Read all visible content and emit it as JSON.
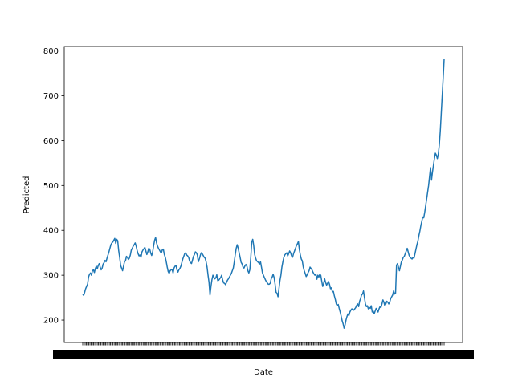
{
  "chart_data": {
    "type": "line",
    "title": "",
    "xlabel": "Date",
    "ylabel": "Predicted",
    "ylim": [
      150,
      810
    ],
    "yticks": [
      200,
      300,
      400,
      500,
      600,
      700,
      800
    ],
    "grid": false,
    "legend": "none",
    "colors": {
      "line": "#1f77b4",
      "axes": "#000000",
      "background": "#ffffff"
    },
    "x_ticks_unreadable": true,
    "series": [
      {
        "values": [
          258,
          255,
          262,
          270,
          275,
          280,
          296,
          302,
          305,
          300,
          310,
          312,
          306,
          315,
          320,
          314,
          322,
          326,
          318,
          312,
          316,
          325,
          328,
          333,
          330,
          338,
          345,
          352,
          360,
          368,
          372,
          374,
          378,
          382,
          371,
          380,
          377,
          355,
          340,
          322,
          316,
          310,
          320,
          330,
          332,
          342,
          340,
          335,
          338,
          345,
          356,
          360,
          365,
          368,
          372,
          365,
          355,
          348,
          343,
          345,
          340,
          352,
          356,
          359,
          362,
          354,
          346,
          352,
          360,
          358,
          349,
          344,
          352,
          366,
          378,
          384,
          372,
          365,
          360,
          356,
          352,
          350,
          357,
          358,
          346,
          340,
          330,
          318,
          308,
          304,
          310,
          312,
          313,
          305,
          316,
          320,
          322,
          312,
          307,
          312,
          315,
          320,
          328,
          336,
          342,
          348,
          350,
          345,
          343,
          340,
          332,
          328,
          326,
          334,
          342,
          346,
          352,
          350,
          345,
          330,
          336,
          344,
          350,
          348,
          344,
          340,
          338,
          330,
          318,
          300,
          284,
          256,
          275,
          290,
          300,
          296,
          292,
          294,
          301,
          288,
          289,
          292,
          295,
          300,
          290,
          283,
          282,
          279,
          284,
          289,
          292,
          296,
          300,
          304,
          310,
          316,
          330,
          346,
          360,
          368,
          360,
          350,
          340,
          329,
          325,
          318,
          316,
          321,
          324,
          320,
          310,
          305,
          312,
          340,
          374,
          380,
          366,
          346,
          338,
          332,
          330,
          328,
          325,
          330,
          318,
          305,
          300,
          295,
          290,
          286,
          283,
          280,
          280,
          282,
          292,
          296,
          302,
          295,
          280,
          262,
          260,
          252,
          270,
          288,
          300,
          318,
          330,
          340,
          345,
          348,
          350,
          343,
          348,
          354,
          350,
          343,
          340,
          348,
          354,
          360,
          366,
          370,
          375,
          357,
          345,
          336,
          332,
          318,
          310,
          304,
          297,
          301,
          306,
          310,
          318,
          315,
          312,
          307,
          303,
          300,
          302,
          291,
          300,
          296,
          302,
          300,
          287,
          275,
          282,
          292,
          284,
          278,
          282,
          286,
          280,
          270,
          272,
          263,
          264,
          254,
          246,
          236,
          232,
          235,
          226,
          218,
          209,
          199,
          192,
          182,
          189,
          200,
          208,
          214,
          210,
          218,
          222,
          225,
          224,
          222,
          225,
          228,
          233,
          236,
          230,
          242,
          248,
          256,
          258,
          265,
          250,
          236,
          230,
          232,
          225,
          228,
          226,
          232,
          218,
          220,
          214,
          220,
          226,
          222,
          218,
          225,
          230,
          228,
          236,
          245,
          240,
          232,
          236,
          242,
          240,
          236,
          240,
          248,
          252,
          256,
          265,
          258,
          260,
          322,
          326,
          318,
          310,
          320,
          330,
          334,
          340,
          342,
          348,
          354,
          360,
          352,
          344,
          340,
          338,
          336,
          340,
          338,
          348,
          358,
          368,
          376,
          388,
          398,
          410,
          420,
          430,
          428,
          440,
          455,
          470,
          485,
          500,
          520,
          540,
          512,
          530,
          545,
          560,
          572,
          568,
          560,
          570,
          590,
          620,
          660,
          700,
          740,
          782
        ]
      }
    ]
  }
}
